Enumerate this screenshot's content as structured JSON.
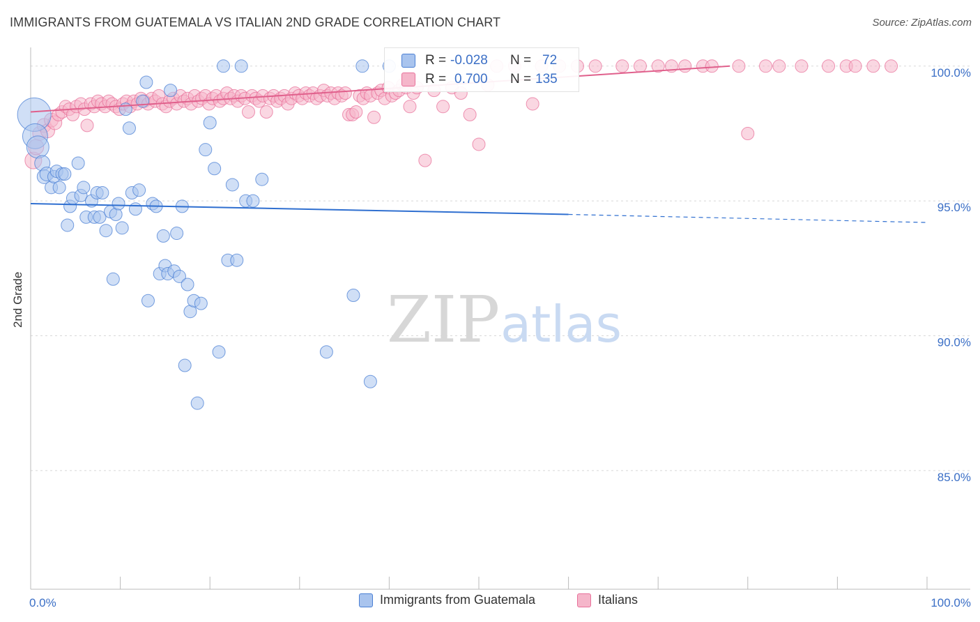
{
  "title": "IMMIGRANTS FROM GUATEMALA VS ITALIAN 2ND GRADE CORRELATION CHART",
  "source": "Source: ZipAtlas.com",
  "watermark": {
    "zip": "ZIP",
    "atlas": "atlas"
  },
  "colors": {
    "blue": "#4a7fd4",
    "blue_fill": "#a9c4ee",
    "pink": "#e8709a",
    "pink_fill": "#f5b6ca",
    "value_text": "#3b6fc6",
    "grid": "#d8d8d8"
  },
  "stats": {
    "r_label": "R =",
    "n_label": "N =",
    "blue": {
      "r": "-0.028",
      "n": "72"
    },
    "pink": {
      "r": "0.700",
      "n": "135"
    }
  },
  "legend": {
    "blue": "Immigrants from Guatemala",
    "pink": "Italians"
  },
  "chart_data": {
    "type": "scatter",
    "ylabel": "2nd Grade",
    "xlim": [
      0,
      100
    ],
    "ylim": [
      80.6,
      100.9
    ],
    "x_tick_labels": [
      {
        "value": 0,
        "label": "0.0%"
      },
      {
        "value": 100,
        "label": "100.0%"
      }
    ],
    "x_minor_ticks": [
      10,
      20,
      30,
      40,
      50,
      60,
      70,
      80,
      90,
      100
    ],
    "y_ticks": [
      {
        "value": 100,
        "label": "100.0%"
      },
      {
        "value": 95,
        "label": "95.0%"
      },
      {
        "value": 90,
        "label": "90.0%"
      },
      {
        "value": 85,
        "label": "85.0%"
      }
    ],
    "grid": "horizontal dashed",
    "legend_position": "bottom-center",
    "series": [
      {
        "name": "Immigrants from Guatemala",
        "color": "blue",
        "trend": {
          "x0": 0,
          "y0": 94.9,
          "x1": 60,
          "y1": 94.5,
          "dashed_to_x": 100,
          "dashed_to_y": 94.2
        },
        "points": [
          [
            0.4,
            98.2,
            24
          ],
          [
            0.5,
            97.4,
            18
          ],
          [
            0.8,
            97.0,
            16
          ],
          [
            1.3,
            96.4,
            11
          ],
          [
            1.5,
            95.9,
            10
          ],
          [
            1.8,
            96.0,
            10
          ],
          [
            2.3,
            95.5,
            9
          ],
          [
            2.6,
            95.9,
            9
          ],
          [
            2.9,
            96.1,
            9
          ],
          [
            3.2,
            95.5,
            9
          ],
          [
            3.5,
            96.0,
            9
          ],
          [
            3.8,
            96.0,
            9
          ],
          [
            4.1,
            94.1,
            9
          ],
          [
            4.4,
            94.8,
            9
          ],
          [
            4.7,
            95.1,
            9
          ],
          [
            5.3,
            96.4,
            9
          ],
          [
            5.6,
            95.2,
            9
          ],
          [
            5.9,
            95.5,
            9
          ],
          [
            6.2,
            94.4,
            9
          ],
          [
            6.8,
            95.0,
            9
          ],
          [
            7.1,
            94.4,
            9
          ],
          [
            7.4,
            95.3,
            9
          ],
          [
            7.7,
            94.4,
            9
          ],
          [
            8.0,
            95.3,
            9
          ],
          [
            8.4,
            93.9,
            9
          ],
          [
            8.9,
            94.6,
            9
          ],
          [
            9.2,
            92.1,
            9
          ],
          [
            9.5,
            94.5,
            9
          ],
          [
            9.8,
            94.9,
            9
          ],
          [
            10.2,
            94.0,
            9
          ],
          [
            10.6,
            98.4,
            9
          ],
          [
            11.0,
            97.7,
            9
          ],
          [
            11.3,
            95.3,
            9
          ],
          [
            11.7,
            94.7,
            9
          ],
          [
            12.1,
            95.4,
            9
          ],
          [
            12.5,
            98.7,
            9
          ],
          [
            12.9,
            99.4,
            9
          ],
          [
            13.1,
            91.3,
            9
          ],
          [
            13.6,
            94.9,
            9
          ],
          [
            14.0,
            94.8,
            9
          ],
          [
            14.4,
            92.3,
            9
          ],
          [
            14.8,
            93.7,
            9
          ],
          [
            15.0,
            92.6,
            9
          ],
          [
            15.3,
            92.3,
            9
          ],
          [
            15.6,
            99.1,
            9
          ],
          [
            16.0,
            92.4,
            9
          ],
          [
            16.3,
            93.8,
            9
          ],
          [
            16.6,
            92.2,
            9
          ],
          [
            16.9,
            94.8,
            9
          ],
          [
            17.2,
            88.9,
            9
          ],
          [
            17.5,
            91.9,
            9
          ],
          [
            17.8,
            90.9,
            9
          ],
          [
            18.2,
            91.3,
            9
          ],
          [
            18.6,
            87.5,
            9
          ],
          [
            19.0,
            91.2,
            9
          ],
          [
            19.5,
            96.9,
            9
          ],
          [
            20.0,
            97.9,
            9
          ],
          [
            20.5,
            96.2,
            9
          ],
          [
            21.0,
            89.4,
            9
          ],
          [
            21.5,
            100.0,
            9
          ],
          [
            22.0,
            92.8,
            9
          ],
          [
            22.5,
            95.6,
            9
          ],
          [
            23.0,
            92.8,
            9
          ],
          [
            23.5,
            100.0,
            9
          ],
          [
            24.0,
            95.0,
            9
          ],
          [
            24.8,
            95.0,
            9
          ],
          [
            25.8,
            95.8,
            9
          ],
          [
            33.0,
            89.4,
            9
          ],
          [
            36.0,
            91.5,
            9
          ],
          [
            37.0,
            100.0,
            9
          ],
          [
            40.0,
            100.0,
            9
          ],
          [
            37.9,
            88.3,
            9
          ]
        ]
      },
      {
        "name": "Italians",
        "color": "pink",
        "trend": {
          "x0": 0,
          "y0": 98.3,
          "x1": 78,
          "y1": 100.0
        },
        "points": [
          [
            0.3,
            96.5,
            12
          ],
          [
            0.6,
            97.0,
            11
          ],
          [
            1.0,
            97.5,
            10
          ],
          [
            1.5,
            97.8,
            10
          ],
          [
            1.9,
            97.6,
            10
          ],
          [
            2.3,
            98.0,
            10
          ],
          [
            2.7,
            97.9,
            10
          ],
          [
            3.1,
            98.2,
            9
          ],
          [
            3.5,
            98.3,
            9
          ],
          [
            3.9,
            98.5,
            9
          ],
          [
            4.3,
            98.4,
            9
          ],
          [
            4.7,
            98.2,
            9
          ],
          [
            5.1,
            98.5,
            9
          ],
          [
            5.6,
            98.6,
            9
          ],
          [
            6.0,
            98.4,
            9
          ],
          [
            6.3,
            97.8,
            9
          ],
          [
            6.7,
            98.6,
            9
          ],
          [
            7.1,
            98.5,
            9
          ],
          [
            7.5,
            98.7,
            9
          ],
          [
            7.9,
            98.6,
            9
          ],
          [
            8.3,
            98.5,
            9
          ],
          [
            8.7,
            98.7,
            9
          ],
          [
            9.1,
            98.6,
            9
          ],
          [
            9.5,
            98.5,
            9
          ],
          [
            9.9,
            98.4,
            9
          ],
          [
            10.3,
            98.6,
            9
          ],
          [
            10.7,
            98.7,
            9
          ],
          [
            11.1,
            98.5,
            9
          ],
          [
            11.5,
            98.7,
            9
          ],
          [
            11.9,
            98.6,
            9
          ],
          [
            12.3,
            98.8,
            9
          ],
          [
            12.7,
            98.7,
            9
          ],
          [
            13.1,
            98.6,
            9
          ],
          [
            13.5,
            98.8,
            9
          ],
          [
            13.9,
            98.7,
            9
          ],
          [
            14.3,
            98.9,
            9
          ],
          [
            14.7,
            98.6,
            9
          ],
          [
            15.1,
            98.5,
            9
          ],
          [
            15.5,
            98.7,
            9
          ],
          [
            15.9,
            98.8,
            9
          ],
          [
            16.3,
            98.6,
            9
          ],
          [
            16.7,
            98.9,
            9
          ],
          [
            17.1,
            98.7,
            9
          ],
          [
            17.5,
            98.8,
            9
          ],
          [
            17.9,
            98.6,
            9
          ],
          [
            18.3,
            98.9,
            9
          ],
          [
            18.7,
            98.7,
            9
          ],
          [
            19.1,
            98.8,
            9
          ],
          [
            19.5,
            98.9,
            9
          ],
          [
            19.9,
            98.6,
            9
          ],
          [
            20.3,
            98.8,
            9
          ],
          [
            20.7,
            98.9,
            9
          ],
          [
            21.1,
            98.7,
            9
          ],
          [
            21.5,
            98.8,
            9
          ],
          [
            21.9,
            99.0,
            9
          ],
          [
            22.3,
            98.8,
            9
          ],
          [
            22.7,
            98.9,
            9
          ],
          [
            23.1,
            98.7,
            9
          ],
          [
            23.5,
            98.9,
            9
          ],
          [
            23.9,
            98.8,
            9
          ],
          [
            24.3,
            98.3,
            9
          ],
          [
            24.7,
            98.9,
            9
          ],
          [
            25.1,
            98.8,
            9
          ],
          [
            25.5,
            98.7,
            9
          ],
          [
            25.9,
            98.9,
            9
          ],
          [
            26.3,
            98.3,
            9
          ],
          [
            26.7,
            98.8,
            9
          ],
          [
            27.1,
            98.9,
            9
          ],
          [
            27.5,
            98.7,
            9
          ],
          [
            27.9,
            98.8,
            9
          ],
          [
            28.3,
            98.9,
            9
          ],
          [
            28.7,
            98.6,
            9
          ],
          [
            29.1,
            98.8,
            9
          ],
          [
            29.5,
            99.0,
            9
          ],
          [
            29.9,
            98.9,
            9
          ],
          [
            30.3,
            98.8,
            9
          ],
          [
            30.7,
            99.0,
            9
          ],
          [
            31.1,
            98.9,
            9
          ],
          [
            31.5,
            99.0,
            9
          ],
          [
            31.9,
            98.8,
            9
          ],
          [
            32.3,
            98.9,
            9
          ],
          [
            32.7,
            99.1,
            9
          ],
          [
            33.1,
            98.9,
            9
          ],
          [
            33.5,
            99.0,
            9
          ],
          [
            33.9,
            98.8,
            9
          ],
          [
            34.3,
            99.0,
            9
          ],
          [
            34.7,
            98.9,
            9
          ],
          [
            35.1,
            99.0,
            9
          ],
          [
            35.5,
            98.2,
            9
          ],
          [
            35.9,
            98.2,
            9
          ],
          [
            36.3,
            98.3,
            9
          ],
          [
            36.7,
            98.9,
            9
          ],
          [
            37.1,
            98.8,
            9
          ],
          [
            37.5,
            99.0,
            9
          ],
          [
            37.9,
            98.9,
            9
          ],
          [
            38.3,
            98.1,
            9
          ],
          [
            38.7,
            99.0,
            9
          ],
          [
            39.1,
            99.1,
            9
          ],
          [
            39.5,
            98.8,
            9
          ],
          [
            39.9,
            99.2,
            9
          ],
          [
            40.3,
            98.9,
            9
          ],
          [
            40.7,
            99.0,
            9
          ],
          [
            41.1,
            99.1,
            9
          ],
          [
            41.5,
            99.3,
            9
          ],
          [
            41.9,
            99.2,
            9
          ],
          [
            42.3,
            98.5,
            9
          ],
          [
            42.7,
            99.0,
            9
          ],
          [
            43.1,
            99.2,
            9
          ],
          [
            44.0,
            96.5,
            9
          ],
          [
            45.0,
            99.1,
            9
          ],
          [
            46.0,
            98.5,
            9
          ],
          [
            47.0,
            99.2,
            9
          ],
          [
            48.0,
            99.0,
            9
          ],
          [
            49.0,
            98.2,
            9
          ],
          [
            50.0,
            97.1,
            9
          ],
          [
            51.0,
            99.3,
            9
          ],
          [
            52.0,
            100.0,
            9
          ],
          [
            54.0,
            100.0,
            9
          ],
          [
            56.0,
            98.6,
            9
          ],
          [
            57.0,
            100.0,
            9
          ],
          [
            59.0,
            100.0,
            9
          ],
          [
            61.0,
            100.0,
            9
          ],
          [
            63.0,
            100.0,
            9
          ],
          [
            66.0,
            100.0,
            9
          ],
          [
            68.0,
            100.0,
            9
          ],
          [
            70.0,
            100.0,
            9
          ],
          [
            71.5,
            100.0,
            9
          ],
          [
            73.0,
            100.0,
            9
          ],
          [
            75.0,
            100.0,
            9
          ],
          [
            76.0,
            100.0,
            9
          ],
          [
            79.0,
            100.0,
            9
          ],
          [
            82.0,
            100.0,
            9
          ],
          [
            83.5,
            100.0,
            9
          ],
          [
            86.0,
            100.0,
            9
          ],
          [
            89.0,
            100.0,
            9
          ],
          [
            91.0,
            100.0,
            9
          ],
          [
            92.0,
            100.0,
            9
          ],
          [
            94.0,
            100.0,
            9
          ],
          [
            96.0,
            100.0,
            9
          ],
          [
            80.0,
            97.5,
            9
          ]
        ]
      }
    ]
  }
}
